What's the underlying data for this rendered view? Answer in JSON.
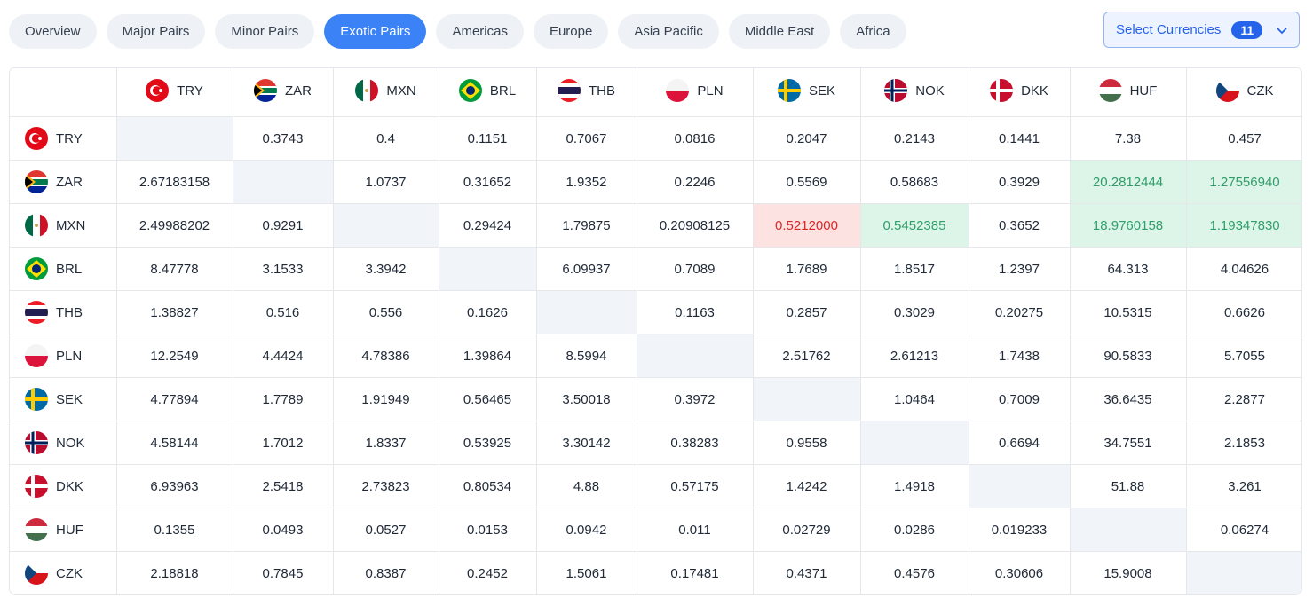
{
  "tabs": [
    "Overview",
    "Major Pairs",
    "Minor Pairs",
    "Exotic Pairs",
    "Americas",
    "Europe",
    "Asia Pacific",
    "Middle East",
    "Africa"
  ],
  "active_tab": 3,
  "selector": {
    "label": "Select Currencies",
    "count": "11"
  },
  "table": {
    "columns": [
      "TRY",
      "ZAR",
      "MXN",
      "BRL",
      "THB",
      "PLN",
      "SEK",
      "NOK",
      "DKK",
      "HUF",
      "CZK"
    ],
    "rows": [
      {
        "currency": "TRY",
        "cells": [
          null,
          "0.3743",
          "0.4",
          "0.1151",
          "0.7067",
          "0.0816",
          "0.2047",
          "0.2143",
          "0.1441",
          "7.38",
          "0.457"
        ]
      },
      {
        "currency": "ZAR",
        "cells": [
          "2.67183158",
          null,
          "1.0737",
          "0.31652",
          "1.9352",
          "0.2246",
          "0.5569",
          "0.58683",
          "0.3929",
          {
            "value": "20.2812444",
            "tone": "positive"
          },
          {
            "value": "1.27556940",
            "tone": "positive"
          }
        ]
      },
      {
        "currency": "MXN",
        "cells": [
          "2.49988202",
          "0.9291",
          null,
          "0.29424",
          "1.79875",
          "0.20908125",
          {
            "value": "0.5212000",
            "tone": "negative"
          },
          {
            "value": "0.5452385",
            "tone": "positive"
          },
          "0.3652",
          {
            "value": "18.9760158",
            "tone": "positive"
          },
          {
            "value": "1.19347830",
            "tone": "positive"
          }
        ]
      },
      {
        "currency": "BRL",
        "cells": [
          "8.47778",
          "3.1533",
          "3.3942",
          null,
          "6.09937",
          "0.7089",
          "1.7689",
          "1.8517",
          "1.2397",
          "64.313",
          "4.04626"
        ]
      },
      {
        "currency": "THB",
        "cells": [
          "1.38827",
          "0.516",
          "0.556",
          "0.1626",
          null,
          "0.1163",
          "0.2857",
          "0.3029",
          "0.20275",
          "10.5315",
          "0.6626"
        ]
      },
      {
        "currency": "PLN",
        "cells": [
          "12.2549",
          "4.4424",
          "4.78386",
          "1.39864",
          "8.5994",
          null,
          "2.51762",
          "2.61213",
          "1.7438",
          "90.5833",
          "5.7055"
        ]
      },
      {
        "currency": "SEK",
        "cells": [
          "4.77894",
          "1.7789",
          "1.91949",
          "0.56465",
          "3.50018",
          "0.3972",
          null,
          "1.0464",
          "0.7009",
          "36.6435",
          "2.2877"
        ]
      },
      {
        "currency": "NOK",
        "cells": [
          "4.58144",
          "1.7012",
          "1.8337",
          "0.53925",
          "3.30142",
          "0.38283",
          "0.9558",
          null,
          "0.6694",
          "34.7551",
          "2.1853"
        ]
      },
      {
        "currency": "DKK",
        "cells": [
          "6.93963",
          "2.5418",
          "2.73823",
          "0.80534",
          "4.88",
          "0.57175",
          "1.4242",
          "1.4918",
          null,
          "51.88",
          "3.261"
        ]
      },
      {
        "currency": "HUF",
        "cells": [
          "0.1355",
          "0.0493",
          "0.0527",
          "0.0153",
          "0.0942",
          "0.011",
          "0.02729",
          "0.0286",
          "0.019233",
          null,
          "0.06274"
        ]
      },
      {
        "currency": "CZK",
        "cells": [
          "2.18818",
          "0.7845",
          "0.8387",
          "0.2452",
          "1.5061",
          "0.17481",
          "0.4371",
          "0.4576",
          "0.30606",
          "15.9008",
          null
        ]
      }
    ]
  }
}
